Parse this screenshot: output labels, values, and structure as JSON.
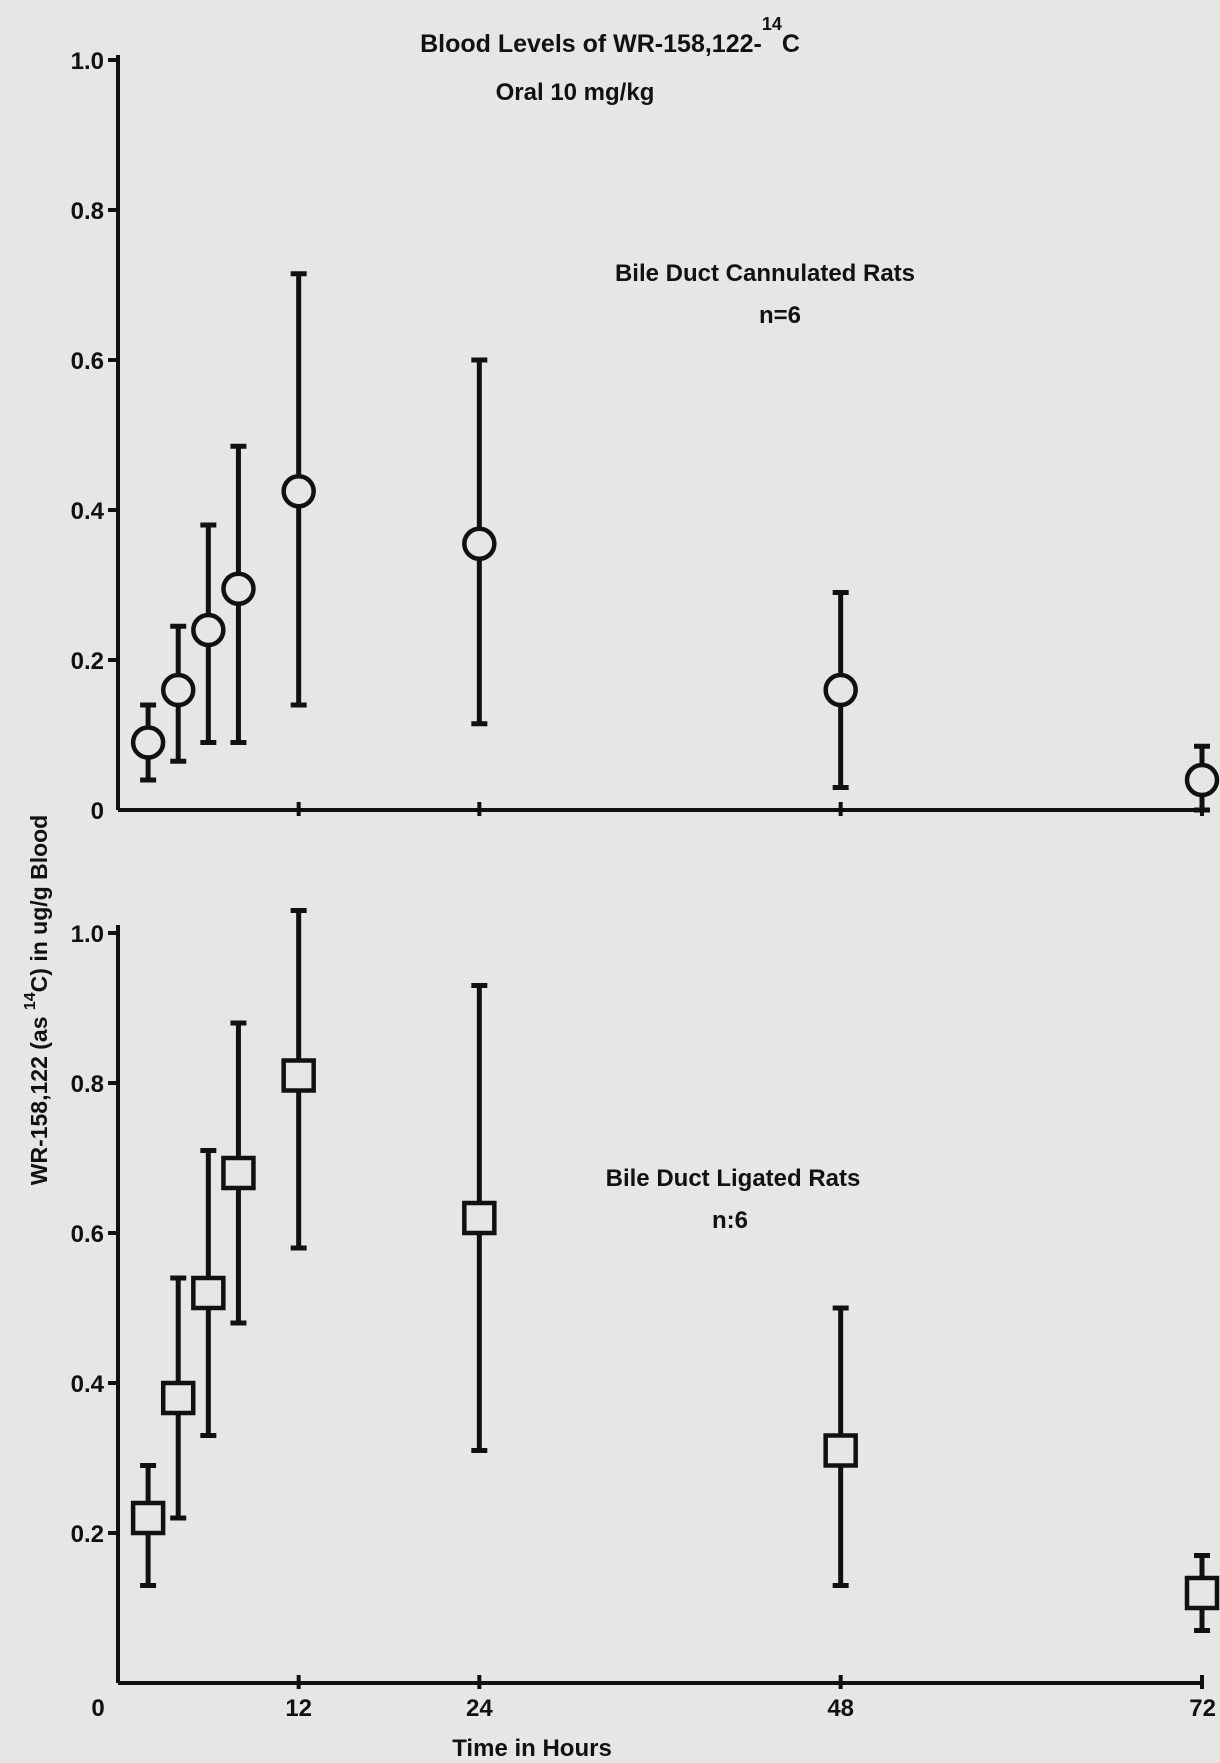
{
  "title": {
    "line1": "Blood Levels of WR-158,122-",
    "superscript": "14",
    "after_superscript": "C",
    "line2": "Oral 10 mg/kg"
  },
  "ylabel": {
    "before_superscript": "WR-158,122 (as ",
    "superscript": "14",
    "after_superscript": "C) in ug/g Blood"
  },
  "xlabel": "Time in Hours",
  "chart_data": [
    {
      "type": "scatter",
      "marker": "circle",
      "annotation": "Bile Duct Cannulated Rats",
      "n_label": "n=6",
      "x": [
        2,
        4,
        6,
        8,
        12,
        24,
        48,
        72
      ],
      "y": [
        0.09,
        0.16,
        0.24,
        0.295,
        0.425,
        0.355,
        0.16,
        0.04
      ],
      "err_low": [
        0.04,
        0.065,
        0.09,
        0.09,
        0.14,
        0.115,
        0.03,
        0.0
      ],
      "err_high": [
        0.14,
        0.245,
        0.38,
        0.485,
        0.715,
        0.6,
        0.29,
        0.085
      ],
      "xlim": [
        0,
        72
      ],
      "ylim": [
        0,
        1.0
      ],
      "yticks": [
        "0",
        "0.2",
        "0.4",
        "0.6",
        "0.8",
        "1.0"
      ],
      "ytick_values": [
        0,
        0.2,
        0.4,
        0.6,
        0.8,
        1.0
      ]
    },
    {
      "type": "scatter",
      "marker": "square",
      "annotation": "Bile Duct Ligated Rats",
      "n_label": "n:6",
      "x": [
        2,
        4,
        6,
        8,
        12,
        24,
        48,
        72
      ],
      "y": [
        0.22,
        0.38,
        0.52,
        0.68,
        0.81,
        0.62,
        0.31,
        0.12
      ],
      "err_low": [
        0.13,
        0.22,
        0.33,
        0.48,
        0.58,
        0.31,
        0.13,
        0.07
      ],
      "err_high": [
        0.29,
        0.54,
        0.71,
        0.88,
        1.03,
        0.93,
        0.5,
        0.17
      ],
      "xlim": [
        0,
        72
      ],
      "ylim": [
        0,
        1.0
      ],
      "yticks": [
        "0.2",
        "0.4",
        "0.6",
        "0.8",
        "1.0"
      ],
      "ytick_values": [
        0.2,
        0.4,
        0.6,
        0.8,
        1.0
      ]
    }
  ],
  "shared_x_axis": {
    "origin_label": "0",
    "ticks": [
      "12",
      "24",
      "48",
      "72"
    ],
    "tick_values": [
      12,
      24,
      48,
      72
    ]
  }
}
